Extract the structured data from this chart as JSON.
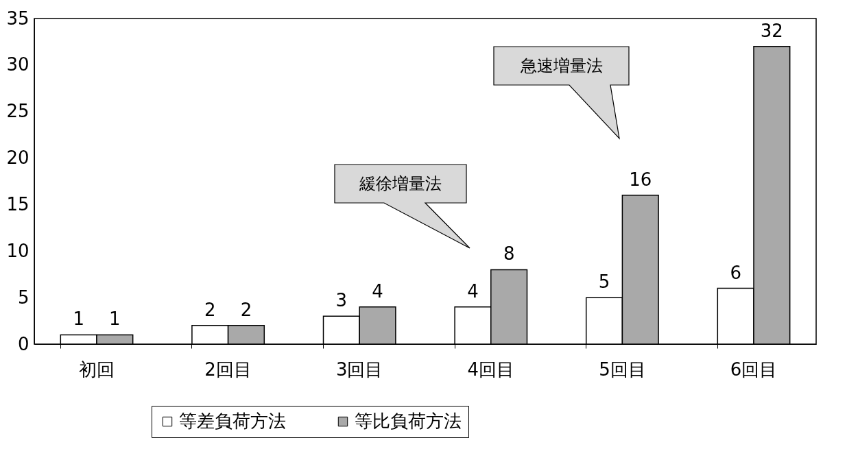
{
  "chart_data": {
    "type": "bar",
    "categories": [
      "初回",
      "2回目",
      "3回目",
      "4回目",
      "5回目",
      "6回目"
    ],
    "series": [
      {
        "name": "等差負荷方法",
        "color": "#ffffff",
        "values": [
          1,
          2,
          3,
          4,
          5,
          6
        ]
      },
      {
        "name": "等比負荷方法",
        "color": "#a9a9a9",
        "values": [
          1,
          2,
          4,
          8,
          16,
          32
        ]
      }
    ],
    "ylim": [
      0,
      35
    ],
    "yticks": [
      0,
      5,
      10,
      15,
      20,
      25,
      30,
      35
    ],
    "data_labels": true,
    "legend": "bottom",
    "grid": false,
    "annotations": [
      "緩徐増量法",
      "急速増量法"
    ]
  }
}
